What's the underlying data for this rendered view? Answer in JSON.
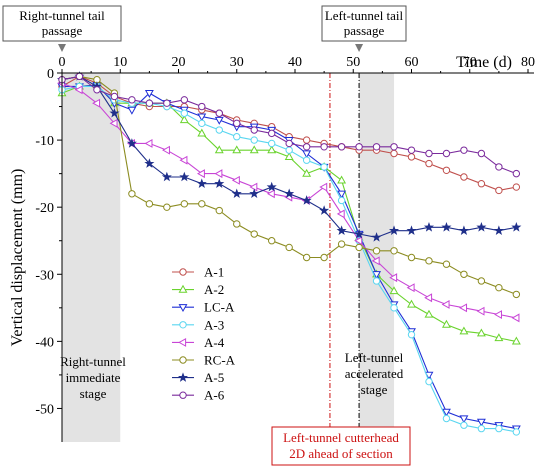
{
  "chart_data": {
    "type": "line",
    "xlabel": "Time (d)",
    "ylabel": "Vertical displacement (mm)",
    "xlim": [
      0,
      80
    ],
    "ylim": [
      -55,
      0
    ],
    "xticks": [
      0,
      10,
      20,
      30,
      40,
      50,
      60,
      70,
      80
    ],
    "yticks": [
      0,
      -10,
      -20,
      -30,
      -40,
      -50
    ],
    "grid": false,
    "legend": "center-left",
    "series": [
      {
        "name": "A-1",
        "color": "#c0504d",
        "marker": "circle",
        "x": [
          0,
          3,
          6,
          9,
          12,
          15,
          18,
          21,
          24,
          27,
          30,
          33,
          36,
          39,
          42,
          45,
          48,
          51,
          54,
          57,
          60,
          63,
          66,
          69,
          72,
          75,
          78
        ],
        "values": [
          -2,
          -0.5,
          -1.5,
          -3.5,
          -4.5,
          -5,
          -5,
          -5,
          -5.5,
          -6,
          -7,
          -7.5,
          -8,
          -9.5,
          -10,
          -10.5,
          -11,
          -11.5,
          -11.5,
          -12,
          -12.5,
          -13.5,
          -14.5,
          -15.5,
          -16.5,
          -17.5,
          -17
        ]
      },
      {
        "name": "A-2",
        "color": "#6ad32d",
        "marker": "triangle-up",
        "x": [
          0,
          3,
          6,
          9,
          12,
          15,
          18,
          21,
          24,
          27,
          30,
          33,
          36,
          39,
          42,
          45,
          48,
          51,
          54,
          57,
          60,
          63,
          66,
          69,
          72,
          75,
          78
        ],
        "values": [
          -3,
          -2,
          -1.8,
          -4.5,
          -4.5,
          -4.5,
          -4.5,
          -7,
          -9,
          -11.5,
          -11.5,
          -11.5,
          -11.5,
          -12.5,
          -15,
          -14,
          -16,
          -24.5,
          -30,
          -32.5,
          -34.5,
          -36,
          -37.5,
          -38.5,
          -38.8,
          -39.5,
          -40
        ]
      },
      {
        "name": "LC-A",
        "color": "#1f2fd6",
        "marker": "triangle-down",
        "x": [
          0,
          3,
          6,
          9,
          12,
          15,
          18,
          21,
          24,
          27,
          30,
          33,
          36,
          39,
          42,
          45,
          48,
          51,
          54,
          57,
          60,
          63,
          66,
          69,
          72,
          75,
          78
        ],
        "values": [
          -2,
          -2,
          -1.8,
          -4.5,
          -5.5,
          -3,
          -4.5,
          -5.5,
          -6.5,
          -7,
          -8,
          -8,
          -8.5,
          -10,
          -12,
          -14,
          -18,
          -24,
          -30,
          -34.5,
          -38.5,
          -45,
          -50.5,
          -51.5,
          -52,
          -52.5,
          -53
        ]
      },
      {
        "name": "A-3",
        "color": "#5ad6f0",
        "marker": "circle",
        "x": [
          0,
          3,
          6,
          9,
          12,
          15,
          18,
          21,
          24,
          27,
          30,
          33,
          36,
          39,
          42,
          45,
          48,
          51,
          54,
          57,
          60,
          63,
          66,
          69,
          72,
          75,
          78
        ],
        "values": [
          -2.5,
          -2,
          -2,
          -4,
          -4.5,
          -4.5,
          -5,
          -6,
          -7.5,
          -8.5,
          -9.5,
          -10,
          -10.5,
          -11.5,
          -13,
          -14,
          -19,
          -25,
          -31,
          -35,
          -39,
          -46,
          -51.5,
          -52.5,
          -53,
          -53,
          -53.5
        ]
      },
      {
        "name": "A-4",
        "color": "#c845d6",
        "marker": "triangle-left",
        "x": [
          0,
          3,
          6,
          9,
          12,
          15,
          18,
          21,
          24,
          27,
          30,
          33,
          36,
          39,
          42,
          45,
          48,
          51,
          54,
          57,
          60,
          63,
          66,
          69,
          72,
          75,
          78
        ],
        "values": [
          -1.5,
          -2.5,
          -4.5,
          -7.5,
          -10.5,
          -10.5,
          -11.5,
          -13,
          -15,
          -15,
          -16,
          -17,
          -18,
          -18.5,
          -19,
          -17,
          -21,
          -25,
          -28,
          -30.5,
          -32,
          -33.5,
          -34.5,
          -35,
          -35.5,
          -36,
          -36.5
        ]
      },
      {
        "name": "RC-A",
        "color": "#8c8c21",
        "marker": "circle",
        "x": [
          0,
          3,
          6,
          9,
          12,
          15,
          18,
          21,
          24,
          27,
          30,
          33,
          36,
          39,
          42,
          45,
          48,
          51,
          54,
          57,
          60,
          63,
          66,
          69,
          72,
          75,
          78
        ],
        "values": [
          -1,
          -0.5,
          -1,
          -3,
          -18,
          -19.5,
          -20,
          -19.5,
          -19.5,
          -20.5,
          -22.5,
          -24,
          -25,
          -26,
          -27.5,
          -27.5,
          -25.5,
          -26,
          -26.5,
          -26.5,
          -27.5,
          -28,
          -28.5,
          -30,
          -31,
          -32,
          -33
        ]
      },
      {
        "name": "A-5",
        "color": "#1f2f8a",
        "marker": "star",
        "x": [
          0,
          3,
          6,
          9,
          12,
          15,
          18,
          21,
          24,
          27,
          30,
          33,
          36,
          39,
          42,
          45,
          48,
          51,
          54,
          57,
          60,
          63,
          66,
          69,
          72,
          75,
          78
        ],
        "values": [
          -1,
          -0.5,
          -2,
          -6,
          -10.5,
          -13.5,
          -15.5,
          -15.5,
          -16.5,
          -16.5,
          -18,
          -18,
          -17,
          -18,
          -19,
          -20.5,
          -23.5,
          -24,
          -24.5,
          -23.5,
          -23.5,
          -23,
          -23,
          -23.5,
          -23,
          -23.5,
          -23
        ]
      },
      {
        "name": "A-6",
        "color": "#7a2a9c",
        "marker": "circle",
        "x": [
          0,
          3,
          6,
          9,
          12,
          15,
          18,
          21,
          24,
          27,
          30,
          33,
          36,
          39,
          42,
          45,
          48,
          51,
          54,
          57,
          60,
          63,
          66,
          69,
          72,
          75,
          78
        ],
        "values": [
          -1,
          -0.5,
          -2.5,
          -3.5,
          -4,
          -4.5,
          -4.5,
          -4,
          -5,
          -6,
          -7.5,
          -8.5,
          -9,
          -10.5,
          -11,
          -11,
          -11,
          -11,
          -11,
          -11,
          -11.5,
          -12,
          -12,
          -11.5,
          -12,
          -14,
          -15
        ]
      }
    ],
    "annotations": {
      "right_tail": "Right-tunnel tail\npassage",
      "left_tail": "Left-tunnel tail\npassage",
      "right_stage": "Right-tunnel\nimmediate\nstage",
      "left_stage": "Left-tunnel\naccelerated\nstage",
      "cutterhead": "Left-tunnel cutterhead\n2D ahead of section"
    },
    "markers": {
      "right_tail_day": 0,
      "left_tail_day": 51,
      "cutterhead_day": 46,
      "right_stage_range": [
        0,
        10
      ],
      "left_stage_range": [
        51,
        57
      ]
    }
  }
}
